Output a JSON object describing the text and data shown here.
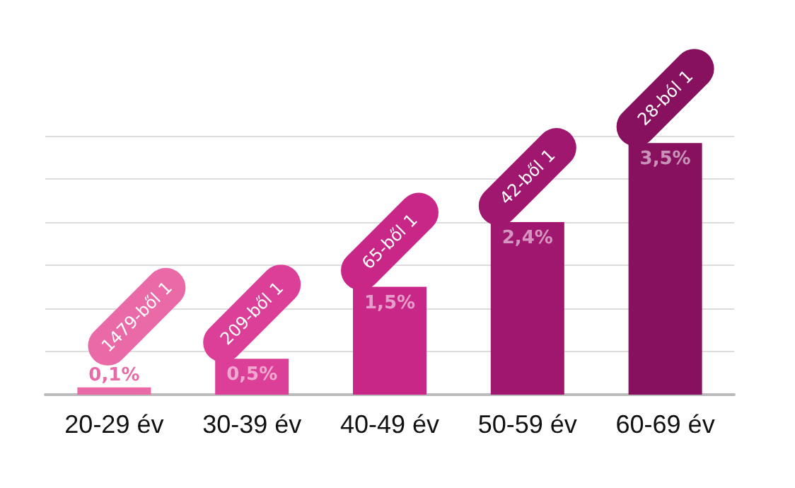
{
  "chart_data": {
    "type": "bar",
    "categories": [
      "20-29 év",
      "30-39 év",
      "40-49 év",
      "50-59 év",
      "60-69 év"
    ],
    "values": [
      0.1,
      0.5,
      1.5,
      2.4,
      3.5
    ],
    "value_labels": [
      "0,1%",
      "0,5%",
      "1,5%",
      "2,4%",
      "3,5%"
    ],
    "colors": [
      "#ea6aa8",
      "#db3f97",
      "#c82787",
      "#a0176f",
      "#87115f"
    ],
    "ylim": [
      0,
      3.6
    ],
    "yticks": [
      {
        "value": 0,
        "label": null
      },
      {
        "value": 0.6,
        "label": null
      },
      {
        "value": 1.2,
        "label": null
      },
      {
        "value": 1.8,
        "label": null
      },
      {
        "value": 2.4,
        "label": null
      },
      {
        "value": 3,
        "label": null
      },
      {
        "value": 3.6,
        "label": null
      }
    ],
    "tick_labels": "x",
    "grid": "y",
    "annotations": [
      {
        "text": "1479-ből 1",
        "x": "20-29 év",
        "y": 0.1
      },
      {
        "text": "209-ből 1",
        "x": "30-39 év",
        "y": 0.5
      },
      {
        "text": "65-ből 1",
        "x": "40-49 év",
        "y": 1.5
      },
      {
        "text": "42-ből 1",
        "x": "50-59 év",
        "y": 2.4
      },
      {
        "text": "28-ból 1",
        "x": "60-69 év",
        "y": 3.5
      }
    ]
  }
}
